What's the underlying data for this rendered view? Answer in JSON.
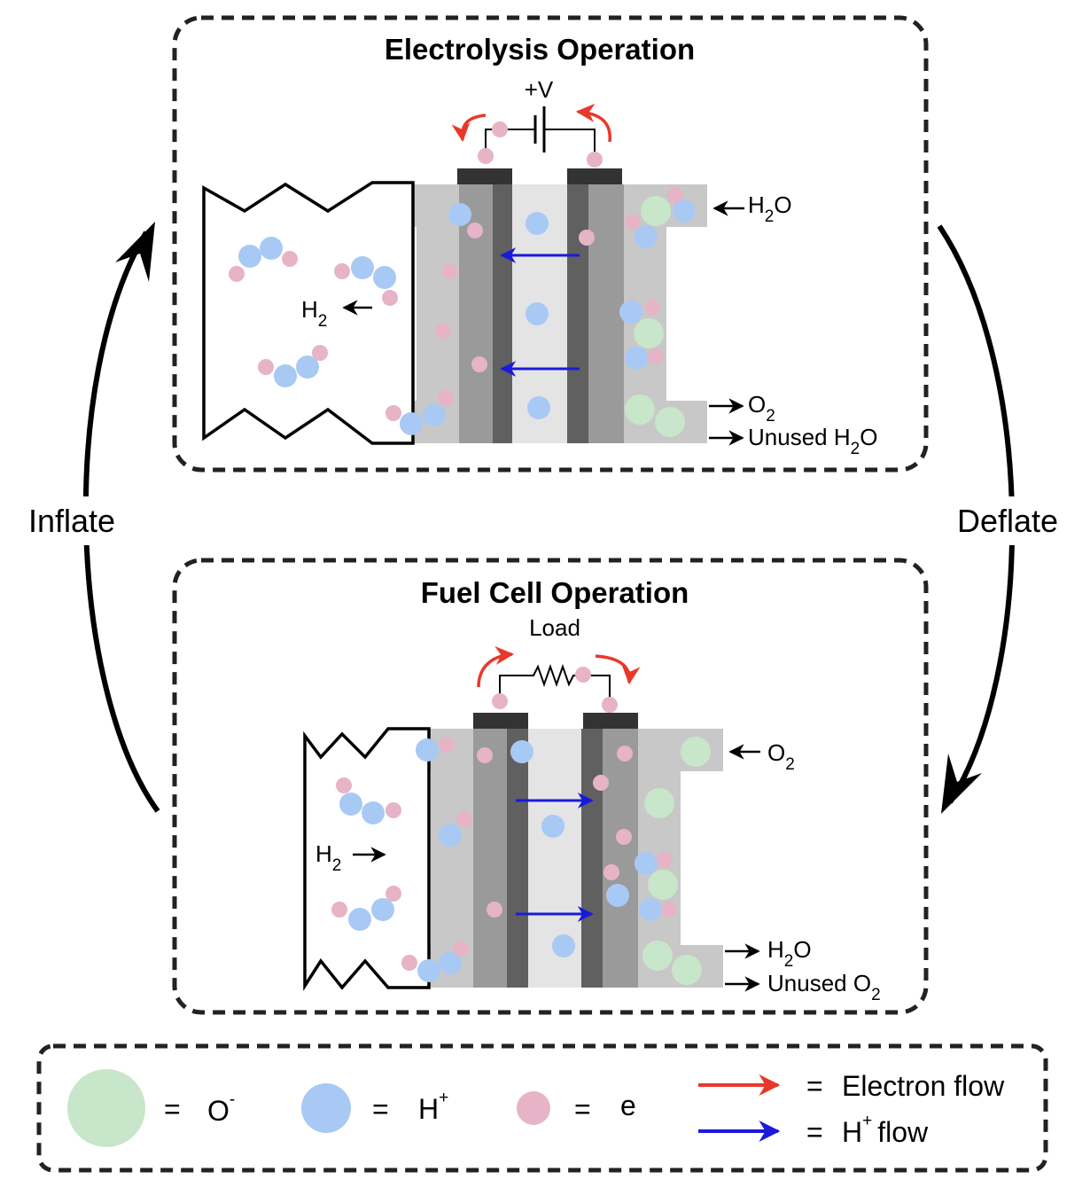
{
  "colors": {
    "oxygen_ion": "#c8e6c9",
    "proton": "#a9c9f5",
    "electron": "#e6b4c6",
    "electron_flow": "#e8382a",
    "proton_flow": "#1a1adb",
    "gas_channel": "#c8c8c8",
    "electrode": "#9a9a9a",
    "catalyst": "#606060",
    "membrane": "#e4e4e4",
    "terminal": "#333333"
  },
  "cycle": {
    "left_label": "Inflate",
    "right_label": "Deflate"
  },
  "electrolysis": {
    "title": "Electrolysis Operation",
    "source_label": "+V",
    "bladder_gas": "H",
    "bladder_gas_sub": "2",
    "inlet": "H",
    "inlet_sub": "2",
    "inlet_tail": "O",
    "outlet1": "O",
    "outlet1_sub": "2",
    "outlet2": "Unused H",
    "outlet2_sub": "2",
    "outlet2_tail": "O"
  },
  "fuel_cell": {
    "title": "Fuel Cell Operation",
    "load_label": "Load",
    "bladder_gas": "H",
    "bladder_gas_sub": "2",
    "inlet": "O",
    "inlet_sub": "2",
    "outlet1": "H",
    "outlet1_sub": "2",
    "outlet1_tail": "O",
    "outlet2": "Unused O",
    "outlet2_sub": "2"
  },
  "legend": {
    "oxygen_ion_eq": "=",
    "oxygen_ion_symbol": "O",
    "oxygen_ion_sup": "-",
    "proton_eq": "=",
    "proton_symbol": "H",
    "proton_sup": "+",
    "electron_eq": "=",
    "electron_symbol": "e",
    "electron_flow_eq": "=",
    "electron_flow_label": "Electron flow",
    "proton_flow_eq": "=",
    "proton_flow_symbol": "H",
    "proton_flow_sup": "+",
    "proton_flow_label": "flow"
  }
}
